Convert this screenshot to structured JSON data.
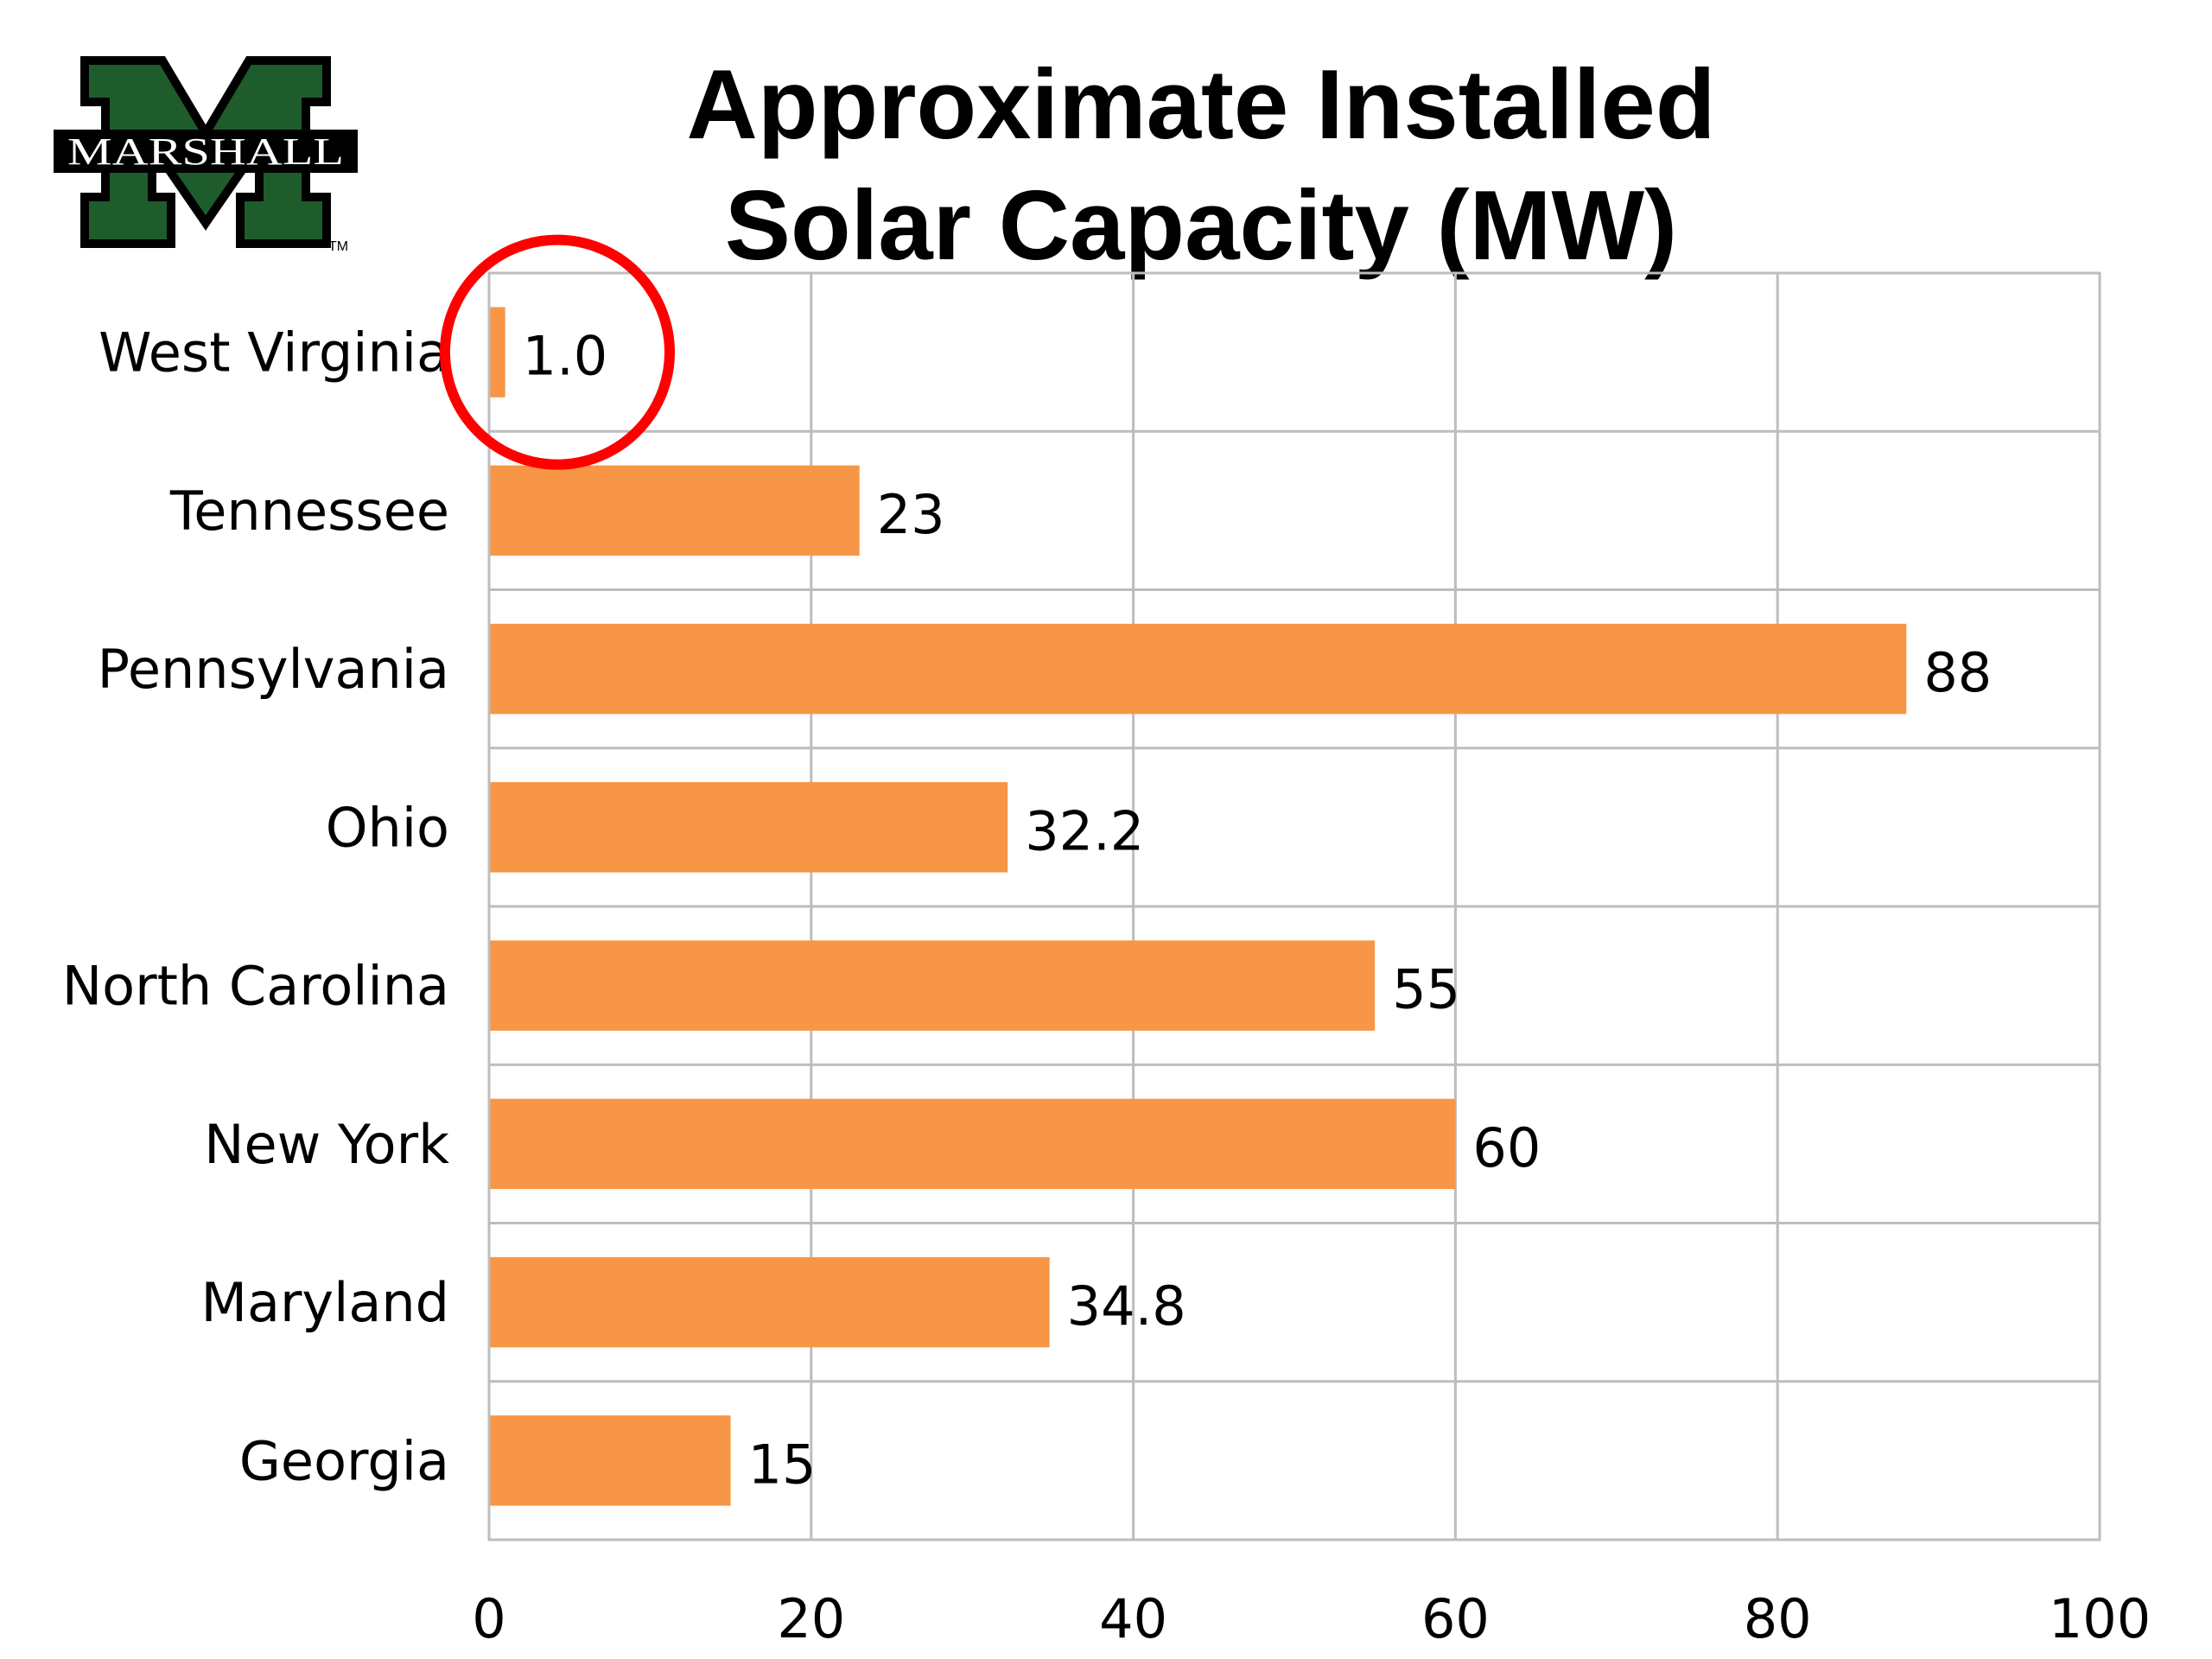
{
  "logo": {
    "wordmark": "MARSHALL",
    "trademark": "TM",
    "colors": {
      "green": "#1f5c2b",
      "black": "#000000",
      "white": "#ffffff"
    }
  },
  "title": {
    "line1": "Approximate Installed",
    "line2": "Solar Capacity (MW)"
  },
  "chart_data": {
    "type": "bar",
    "orientation": "horizontal",
    "title": "Approximate Installed Solar Capacity (MW)",
    "categories": [
      "West Virginia",
      "Tennessee",
      "Pennsylvania",
      "Ohio",
      "North Carolina",
      "New York",
      "Maryland",
      "Georgia"
    ],
    "values": [
      1.0,
      23,
      88,
      32.2,
      55,
      60,
      34.8,
      15
    ],
    "data_labels": [
      "1.0",
      "23",
      "88",
      "32.2",
      "55",
      "60",
      "34.8",
      "15"
    ],
    "xlim": [
      0,
      100
    ],
    "xticks": [
      0,
      20,
      40,
      60,
      80,
      100
    ],
    "grid": true,
    "legend": "none",
    "bar_color": "#f79646",
    "grid_color": "#bdbdbd",
    "highlight": {
      "category": "West Virginia",
      "shape": "circle",
      "color": "#ff0000"
    }
  }
}
